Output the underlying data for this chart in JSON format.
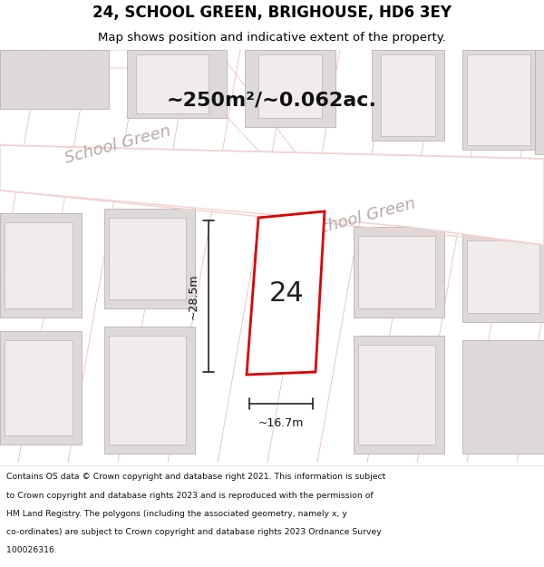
{
  "title": "24, SCHOOL GREEN, BRIGHOUSE, HD6 3EY",
  "subtitle": "Map shows position and indicative extent of the property.",
  "area_text": "~250m²/~0.062ac.",
  "label_24": "24",
  "dim_width": "~16.7m",
  "dim_height": "~28.5m",
  "street_label1": "School Green",
  "street_label2": "School Green",
  "map_bg": "#ffffff",
  "plot_fill": "#ffffff",
  "plot_stroke": "#dd0000",
  "building_fill": "#e0dcdc",
  "building_stroke": "#bbaaaa",
  "road_stroke": "#e8b0b0",
  "footer_lines": [
    "Contains OS data © Crown copyright and database right 2021. This information is subject",
    "to Crown copyright and database rights 2023 and is reproduced with the permission of",
    "HM Land Registry. The polygons (including the associated geometry, namely x, y",
    "co-ordinates) are subject to Crown copyright and database rights 2023 Ordnance Survey",
    "100026316."
  ],
  "figsize": [
    6.0,
    6.25
  ],
  "dpi": 100
}
